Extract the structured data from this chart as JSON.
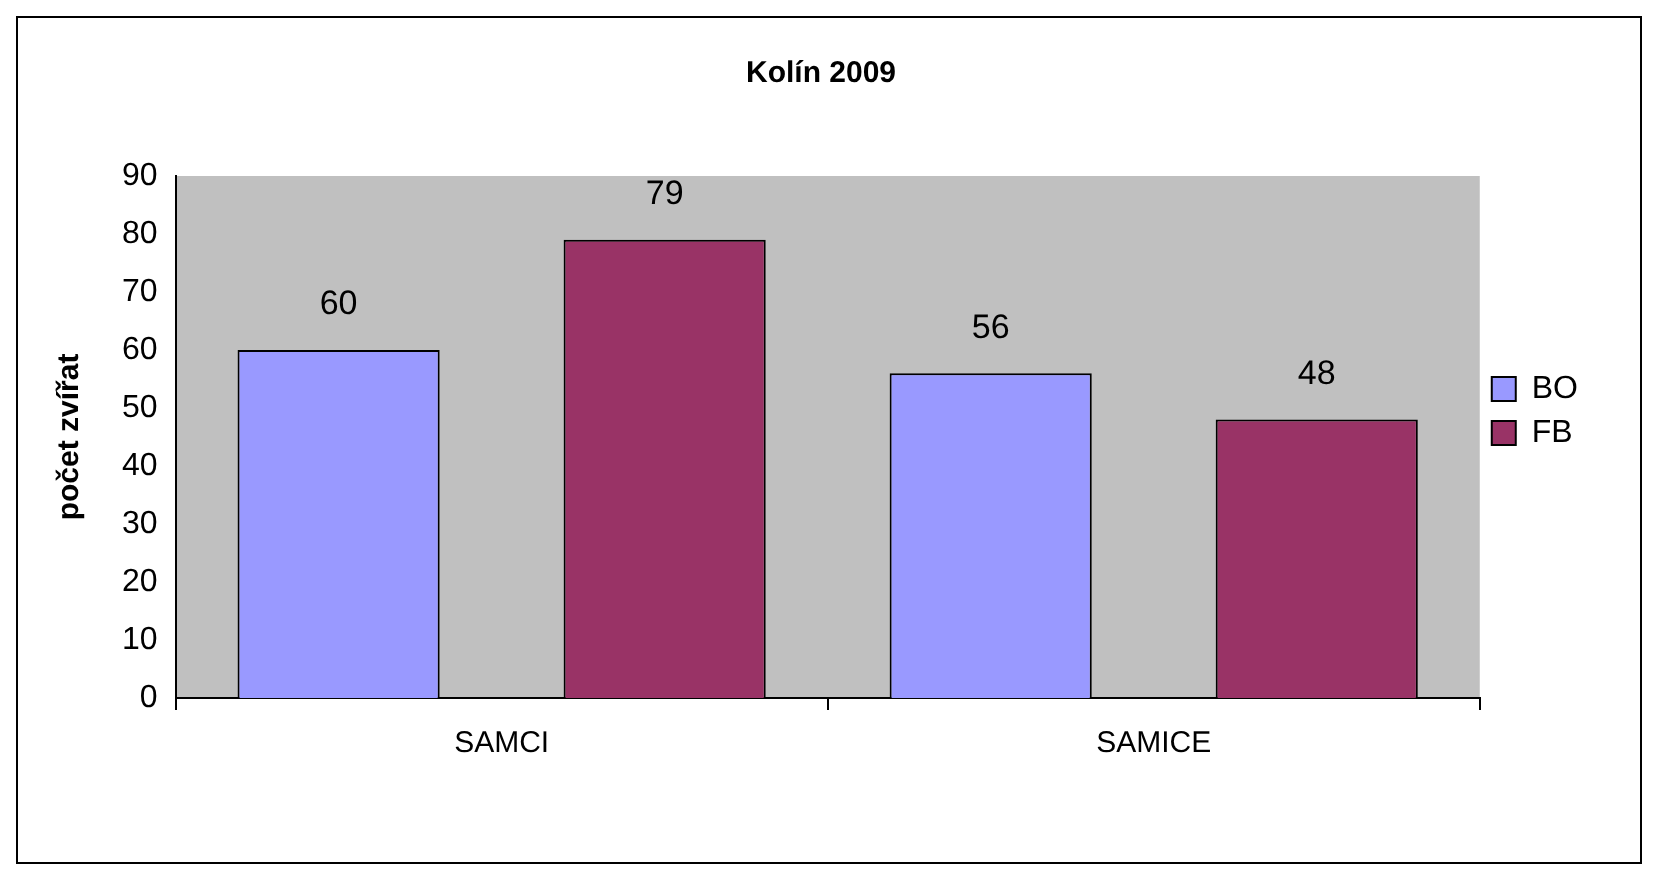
{
  "chart_data": {
    "type": "bar",
    "title": "Kolín 2009",
    "ylabel": "počet zvířat",
    "categories": [
      "SAMCI",
      "SAMICE"
    ],
    "series": [
      {
        "name": "BO",
        "color": "#9999ff",
        "values": [
          60,
          56
        ]
      },
      {
        "name": "FB",
        "color": "#993366",
        "values": [
          79,
          48
        ]
      }
    ],
    "ylim": [
      0,
      90
    ],
    "yticks": [
      0,
      10,
      20,
      30,
      40,
      50,
      60,
      70,
      80,
      90
    ],
    "grid": false,
    "legend": "right",
    "data_labels": true
  }
}
